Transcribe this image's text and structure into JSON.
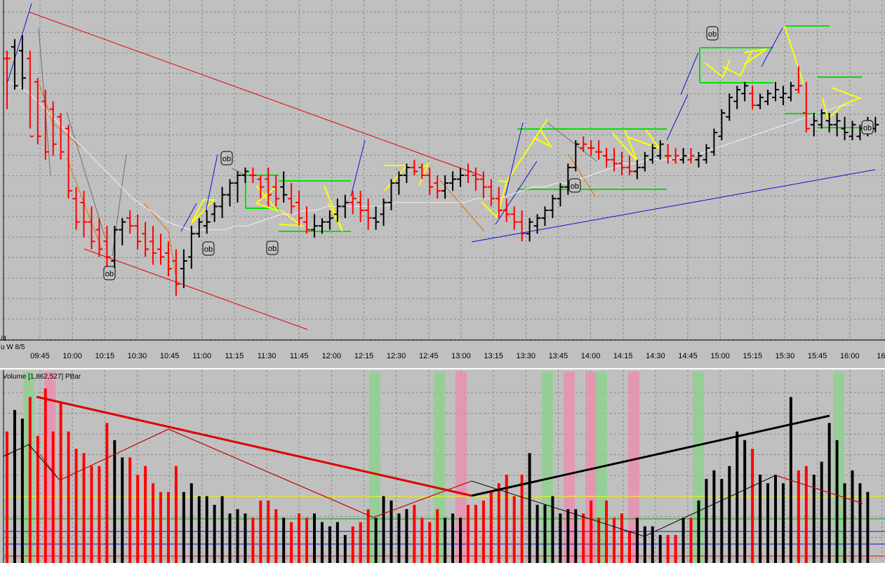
{
  "colors": {
    "background": "#c0c0c0",
    "grid": "#8a8a8a",
    "up_bar": "#000000",
    "down_bar": "#ff0000",
    "moving_average": "#f0f0f0",
    "trendline_red": "#e00000",
    "trendline_blue": "#1010d0",
    "channel_orange": "#e07000",
    "box_green": "#00e000",
    "pattern_yellow": "#ffff00",
    "highlight_green": "#8fd08f",
    "highlight_pink": "#e890b0"
  },
  "price_panel": {
    "axis_fragment_top": "/4",
    "axis_fragment_bottom": "u W  8/5",
    "x_tick_labels": [
      "09:45",
      "10:00",
      "10:15",
      "10:30",
      "10:45",
      "11:00",
      "11:15",
      "11:30",
      "11:45",
      "12:00",
      "12:15",
      "12:30",
      "12:45",
      "13:00",
      "13:15",
      "13:30",
      "13:45",
      "14:00",
      "14:15",
      "14:30",
      "14:45",
      "15:00",
      "15:15",
      "15:30",
      "15:45",
      "16:00",
      "16:"
    ],
    "ob_markers": [
      "ob",
      "ob",
      "ob",
      "ob",
      "ob",
      "ob",
      "ob"
    ]
  },
  "volume_panel": {
    "label": "Volume  [1,862,527]  PBar"
  },
  "chart_data": [
    {
      "type": "candlestick",
      "title": "",
      "x_ticks": [
        "09:45",
        "10:00",
        "10:15",
        "10:30",
        "10:45",
        "11:00",
        "11:15",
        "11:30",
        "11:45",
        "12:00",
        "12:15",
        "12:30",
        "12:45",
        "13:00",
        "13:15",
        "13:30",
        "13:45",
        "14:00",
        "14:15",
        "14:30",
        "14:45",
        "15:00",
        "15:15",
        "15:30",
        "15:45",
        "16:00"
      ],
      "bar_interval_minutes": 2.5,
      "bars": [
        [
          30,
          32,
          17,
          30,
          "d"
        ],
        [
          33,
          35,
          22,
          23,
          "u"
        ],
        [
          32,
          36,
          22,
          25,
          "u"
        ],
        [
          30,
          32,
          12,
          10,
          "d"
        ],
        [
          24,
          25,
          8,
          10,
          "d"
        ],
        [
          19,
          22,
          4,
          6,
          "d"
        ],
        [
          17,
          19,
          5,
          8,
          "d"
        ],
        [
          15,
          16,
          4,
          6,
          "d"
        ],
        [
          12,
          13,
          -6,
          -4,
          "d"
        ],
        [
          -6,
          -3,
          -14,
          -12,
          "d"
        ],
        [
          -7,
          -4,
          -16,
          -12,
          "d"
        ],
        [
          -12,
          -8,
          -19,
          -17,
          "d"
        ],
        [
          -14,
          -11,
          -21,
          -19,
          "d"
        ],
        [
          -17,
          -13,
          -25,
          -21,
          "d"
        ],
        [
          -22,
          -13,
          -24,
          -14,
          "u"
        ],
        [
          -14,
          -11,
          -18,
          -12,
          "u"
        ],
        [
          -11,
          -9,
          -15,
          -13,
          "d"
        ],
        [
          -13,
          -10,
          -19,
          -17,
          "d"
        ],
        [
          -15,
          -12,
          -21,
          -19,
          "d"
        ],
        [
          -17,
          -13,
          -23,
          -20,
          "d"
        ],
        [
          -19,
          -15,
          -23,
          -21,
          "d"
        ],
        [
          -20,
          -17,
          -26,
          -24,
          "d"
        ],
        [
          -22,
          -19,
          -31,
          -28,
          "d"
        ],
        [
          -24,
          -19,
          -29,
          -22,
          "u"
        ],
        [
          -21,
          -13,
          -24,
          -15,
          "u"
        ],
        [
          -15,
          -11,
          -16,
          -12,
          "u"
        ],
        [
          -13,
          -9,
          -15,
          -12,
          "u"
        ],
        [
          -10,
          -7,
          -12,
          -8,
          "u"
        ],
        [
          -8,
          -3,
          -11,
          -5,
          "u"
        ],
        [
          -5,
          -1,
          -8,
          -2,
          "u"
        ],
        [
          -2,
          1,
          -7,
          0,
          "u"
        ],
        [
          0,
          2,
          -2,
          1,
          "u"
        ],
        [
          0,
          2,
          -2,
          0,
          "d"
        ],
        [
          -1,
          0,
          -6,
          -3,
          "d"
        ],
        [
          -1,
          2,
          -8,
          -5,
          "d"
        ],
        [
          -3,
          0,
          -8,
          -6,
          "d"
        ],
        [
          -3,
          1,
          -7,
          -5,
          "u"
        ],
        [
          -6,
          -2,
          -10,
          -8,
          "d"
        ],
        [
          -7,
          -4,
          -13,
          -11,
          "d"
        ],
        [
          -12,
          -8,
          -15,
          -14,
          "d"
        ],
        [
          -14,
          -10,
          -16,
          -13,
          "u"
        ],
        [
          -13,
          -11,
          -15,
          -12,
          "u"
        ],
        [
          -12,
          -9,
          -14,
          -11,
          "u"
        ],
        [
          -10,
          -6,
          -12,
          -8,
          "u"
        ],
        [
          -8,
          -5,
          -11,
          -7,
          "u"
        ],
        [
          -7,
          -4,
          -10,
          -6,
          "d"
        ],
        [
          -7,
          -4,
          -12,
          -9,
          "d"
        ],
        [
          -9,
          -6,
          -14,
          -11,
          "d"
        ],
        [
          -11,
          -8,
          -14,
          -12,
          "u"
        ],
        [
          -10,
          -6,
          -13,
          -7,
          "u"
        ],
        [
          -7,
          -1,
          -9,
          -2,
          "u"
        ],
        [
          -2,
          1,
          -5,
          0,
          "u"
        ],
        [
          0,
          3,
          -2,
          2,
          "u"
        ],
        [
          2,
          4,
          0,
          1,
          "d"
        ],
        [
          2,
          3,
          -1,
          0,
          "d"
        ],
        [
          0,
          2,
          -5,
          -3,
          "d"
        ],
        [
          -2,
          0,
          -6,
          -4,
          "d"
        ],
        [
          -4,
          0,
          -6,
          -2,
          "u"
        ],
        [
          -2,
          1,
          -4,
          -1,
          "u"
        ],
        [
          -1,
          2,
          -3,
          0,
          "u"
        ],
        [
          0,
          3,
          -2,
          1,
          "d"
        ],
        [
          0,
          2,
          -4,
          -1,
          "d"
        ],
        [
          -1,
          1,
          -6,
          -3,
          "d"
        ],
        [
          -3,
          -1,
          -8,
          -6,
          "d"
        ],
        [
          -6,
          -3,
          -11,
          -9,
          "d"
        ],
        [
          -9,
          -6,
          -12,
          -10,
          "d"
        ],
        [
          -10,
          -8,
          -14,
          -12,
          "d"
        ],
        [
          -12,
          -9,
          -17,
          -15,
          "d"
        ],
        [
          -15,
          -11,
          -17,
          -12,
          "u"
        ],
        [
          -13,
          -10,
          -15,
          -11,
          "u"
        ],
        [
          -11,
          -8,
          -13,
          -9,
          "u"
        ],
        [
          -9,
          -5,
          -11,
          -6,
          "u"
        ],
        [
          -6,
          -2,
          -8,
          -3,
          "u"
        ],
        [
          -3,
          3,
          -5,
          2,
          "u"
        ],
        [
          2,
          9,
          1,
          8,
          "u"
        ],
        [
          7,
          10,
          6,
          8,
          "d"
        ],
        [
          7,
          9,
          5,
          7,
          "d"
        ],
        [
          6,
          9,
          4,
          6,
          "d"
        ],
        [
          5,
          7,
          2,
          4,
          "d"
        ],
        [
          4,
          7,
          1,
          3,
          "d"
        ],
        [
          3,
          6,
          0,
          2,
          "d"
        ],
        [
          2,
          5,
          0,
          1,
          "d"
        ],
        [
          1,
          4,
          -1,
          2,
          "u"
        ],
        [
          2,
          6,
          1,
          5,
          "u"
        ],
        [
          4,
          8,
          3,
          7,
          "u"
        ],
        [
          5,
          9,
          4,
          8,
          "u"
        ],
        [
          5,
          8,
          3,
          5,
          "d"
        ],
        [
          4,
          7,
          3,
          5,
          "d"
        ],
        [
          4,
          7,
          3,
          5,
          "u"
        ],
        [
          4,
          7,
          3,
          5,
          "d"
        ],
        [
          4,
          6,
          2,
          5,
          "u"
        ],
        [
          4,
          8,
          3,
          7,
          "u"
        ],
        [
          6,
          12,
          5,
          11,
          "u"
        ],
        [
          10,
          17,
          9,
          16,
          "u"
        ],
        [
          15,
          21,
          14,
          20,
          "u"
        ],
        [
          19,
          23,
          17,
          22,
          "u"
        ],
        [
          21,
          24,
          19,
          23,
          "u"
        ],
        [
          21,
          23,
          17,
          18,
          "d"
        ],
        [
          18,
          21,
          17,
          20,
          "u"
        ],
        [
          19,
          22,
          18,
          21,
          "u"
        ],
        [
          20,
          24,
          19,
          22,
          "u"
        ],
        [
          20,
          23,
          18,
          21,
          "u"
        ],
        [
          20,
          24,
          19,
          23,
          "u"
        ],
        [
          22,
          28,
          21,
          23,
          "d"
        ],
        [
          16,
          24,
          11,
          12,
          "d"
        ],
        [
          13,
          16,
          10,
          14,
          "u"
        ],
        [
          13,
          17,
          12,
          16,
          "u"
        ],
        [
          14,
          16,
          11,
          13,
          "u"
        ],
        [
          13,
          16,
          10,
          14,
          "u"
        ],
        [
          12,
          15,
          9,
          11,
          "u"
        ],
        [
          10,
          14,
          9,
          13,
          "u"
        ],
        [
          10,
          13,
          9,
          12,
          "u"
        ],
        [
          11,
          15,
          10,
          14,
          "u"
        ],
        [
          12,
          15,
          11,
          13,
          "u"
        ]
      ],
      "moving_average": [
        24,
        23,
        21,
        18,
        15,
        12,
        9,
        6,
        3,
        0,
        -3,
        -6,
        -8,
        -10,
        -12,
        -13,
        -14,
        -14,
        -14,
        -14,
        -13,
        -13,
        -12,
        -11,
        -10,
        -10,
        -9,
        -9,
        -8,
        -8,
        -8,
        -8,
        -8,
        -8,
        -7,
        -7,
        -7,
        -7,
        -7,
        -7,
        -7,
        -6,
        -6,
        -6,
        -5,
        -4,
        -3,
        -3,
        -2,
        -2,
        -1,
        0,
        1,
        2,
        3,
        3,
        4,
        4,
        4,
        5,
        5,
        6,
        7,
        8,
        9,
        10,
        11,
        12,
        13,
        14,
        15,
        16,
        17,
        18,
        18
      ]
    },
    {
      "type": "bar",
      "title": "Volume",
      "values": [
        30,
        35,
        33,
        38,
        29,
        40,
        30,
        37,
        30,
        26,
        25,
        22,
        22,
        32,
        28,
        24,
        24,
        20,
        22,
        18,
        16,
        16,
        22,
        16,
        18,
        15,
        15,
        13,
        15,
        11,
        12,
        11,
        10,
        14,
        14,
        12,
        10,
        9,
        11,
        10,
        11,
        9,
        8,
        9,
        6,
        8,
        9,
        12,
        10,
        15,
        14,
        11,
        12,
        13,
        10,
        9,
        12,
        10,
        11,
        10,
        13,
        13,
        14,
        16,
        18,
        20,
        15,
        20,
        25,
        13,
        13,
        15,
        11,
        12,
        12,
        11,
        14,
        10,
        14,
        10,
        11,
        7,
        10,
        8,
        8,
        6,
        6,
        6,
        10,
        10,
        14,
        19,
        21,
        19,
        22,
        30,
        28,
        26,
        20,
        18,
        20,
        18,
        38,
        21,
        22,
        20,
        23,
        32,
        28,
        18,
        21,
        18,
        16
      ]
    }
  ]
}
